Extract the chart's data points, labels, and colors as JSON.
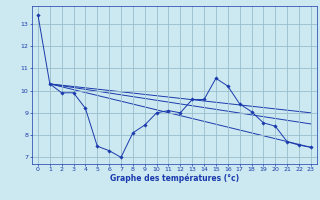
{
  "xlabel": "Graphe des températures (°c)",
  "background_color": "#cce8f0",
  "line_color": "#1a3aad",
  "grid_color": "#99bece",
  "ylim": [
    6.7,
    13.8
  ],
  "xlim": [
    -0.5,
    23.5
  ],
  "yticks": [
    7,
    8,
    9,
    10,
    11,
    12,
    13
  ],
  "xticks": [
    0,
    1,
    2,
    3,
    4,
    5,
    6,
    7,
    8,
    9,
    10,
    11,
    12,
    13,
    14,
    15,
    16,
    17,
    18,
    19,
    20,
    21,
    22,
    23
  ],
  "series1_x": [
    0,
    1,
    2,
    3,
    4,
    5,
    6,
    7,
    8,
    9,
    10,
    11,
    12,
    13,
    14,
    15,
    16,
    17,
    18,
    19,
    20,
    21,
    22,
    23
  ],
  "series1_y": [
    13.4,
    10.3,
    9.9,
    9.9,
    9.2,
    7.5,
    7.3,
    7.0,
    8.1,
    8.45,
    9.0,
    9.1,
    9.0,
    9.6,
    9.6,
    10.55,
    10.2,
    9.4,
    9.05,
    8.55,
    8.4,
    7.7,
    7.55,
    7.45
  ],
  "trend1_x": [
    1,
    23
  ],
  "trend1_y": [
    10.3,
    9.0
  ],
  "trend2_x": [
    1,
    23
  ],
  "trend2_y": [
    10.3,
    8.5
  ],
  "trend3_x": [
    1,
    23
  ],
  "trend3_y": [
    10.3,
    7.45
  ]
}
